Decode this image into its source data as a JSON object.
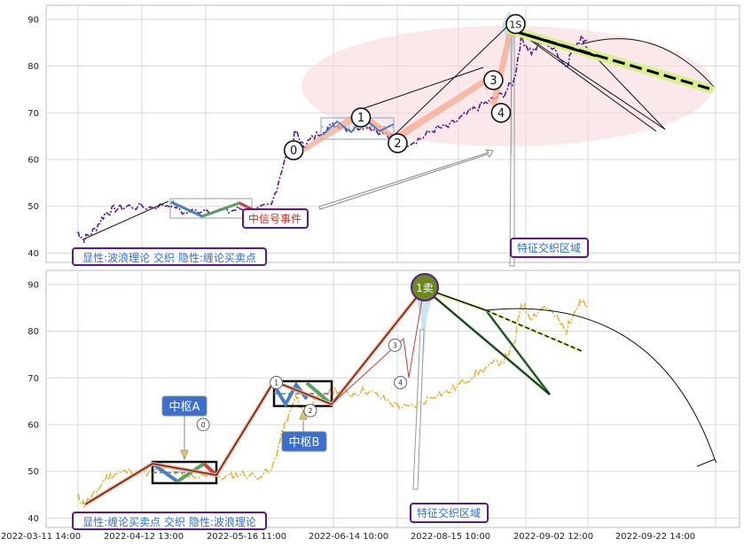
{
  "chart_data": [
    {
      "type": "line",
      "title": "",
      "ylim": [
        38,
        93
      ],
      "y_ticks": [
        40,
        50,
        60,
        70,
        80,
        90
      ],
      "grid": true,
      "annotations": {
        "legend_box": "显性:波浪理论 交织 隐性:缠论买卖点",
        "signal_box": "中信号事件",
        "zone_box": "特征交织区域"
      },
      "wave_points": [
        {
          "label": "0",
          "t": 0.357,
          "y": 62
        },
        {
          "label": "1",
          "t": 0.454,
          "y": 69
        },
        {
          "label": "2",
          "t": 0.507,
          "y": 63.5
        },
        {
          "label": "3",
          "t": 0.645,
          "y": 77
        },
        {
          "label": "4",
          "t": 0.656,
          "y": 70
        },
        {
          "label": "1S",
          "t": 0.677,
          "y": 89
        }
      ]
    },
    {
      "type": "line",
      "title": "",
      "ylim": [
        38,
        93
      ],
      "y_ticks": [
        40,
        50,
        60,
        70,
        80,
        90
      ],
      "grid": true,
      "x_ticks": [
        "2022-03-11 14:00",
        "2022-04-12 13:00",
        "2022-05-16 11:00",
        "2022-06-14 10:00",
        "2022-08-15 10:00",
        "2022-09-02 12:00",
        "2022-09-22 14:00"
      ],
      "annotations": {
        "legend_box": "显性:缠论买卖点 交织 隐性:波浪理论",
        "zone_box": "特征交织区域",
        "pivot_a": "中枢A",
        "pivot_b": "中枢B",
        "sell_point": "1卖"
      },
      "wave_points": [
        {
          "label": "0",
          "t": 0.2265,
          "y": 60
        },
        {
          "label": "1",
          "t": 0.332,
          "y": 69
        },
        {
          "label": "2",
          "t": 0.381,
          "y": 63
        },
        {
          "label": "3",
          "t": 0.503,
          "y": 77
        },
        {
          "label": "4",
          "t": 0.511,
          "y": 69
        }
      ]
    }
  ],
  "colors": {
    "top_price": "#5a1a8a",
    "bottom_price": "#e8b030",
    "wave_fill": "#f4a890",
    "zone_ellipse": "#f6d8dc",
    "pivot_blue": "#4a7fc0",
    "pivot_green": "#5aa060",
    "pivot_red": "#d04040",
    "label_blue": "#2a6fd0",
    "label_border": "#5a1a8a",
    "sell_fill": "#6a8a20",
    "trend_yellow": "#d8f08a"
  }
}
